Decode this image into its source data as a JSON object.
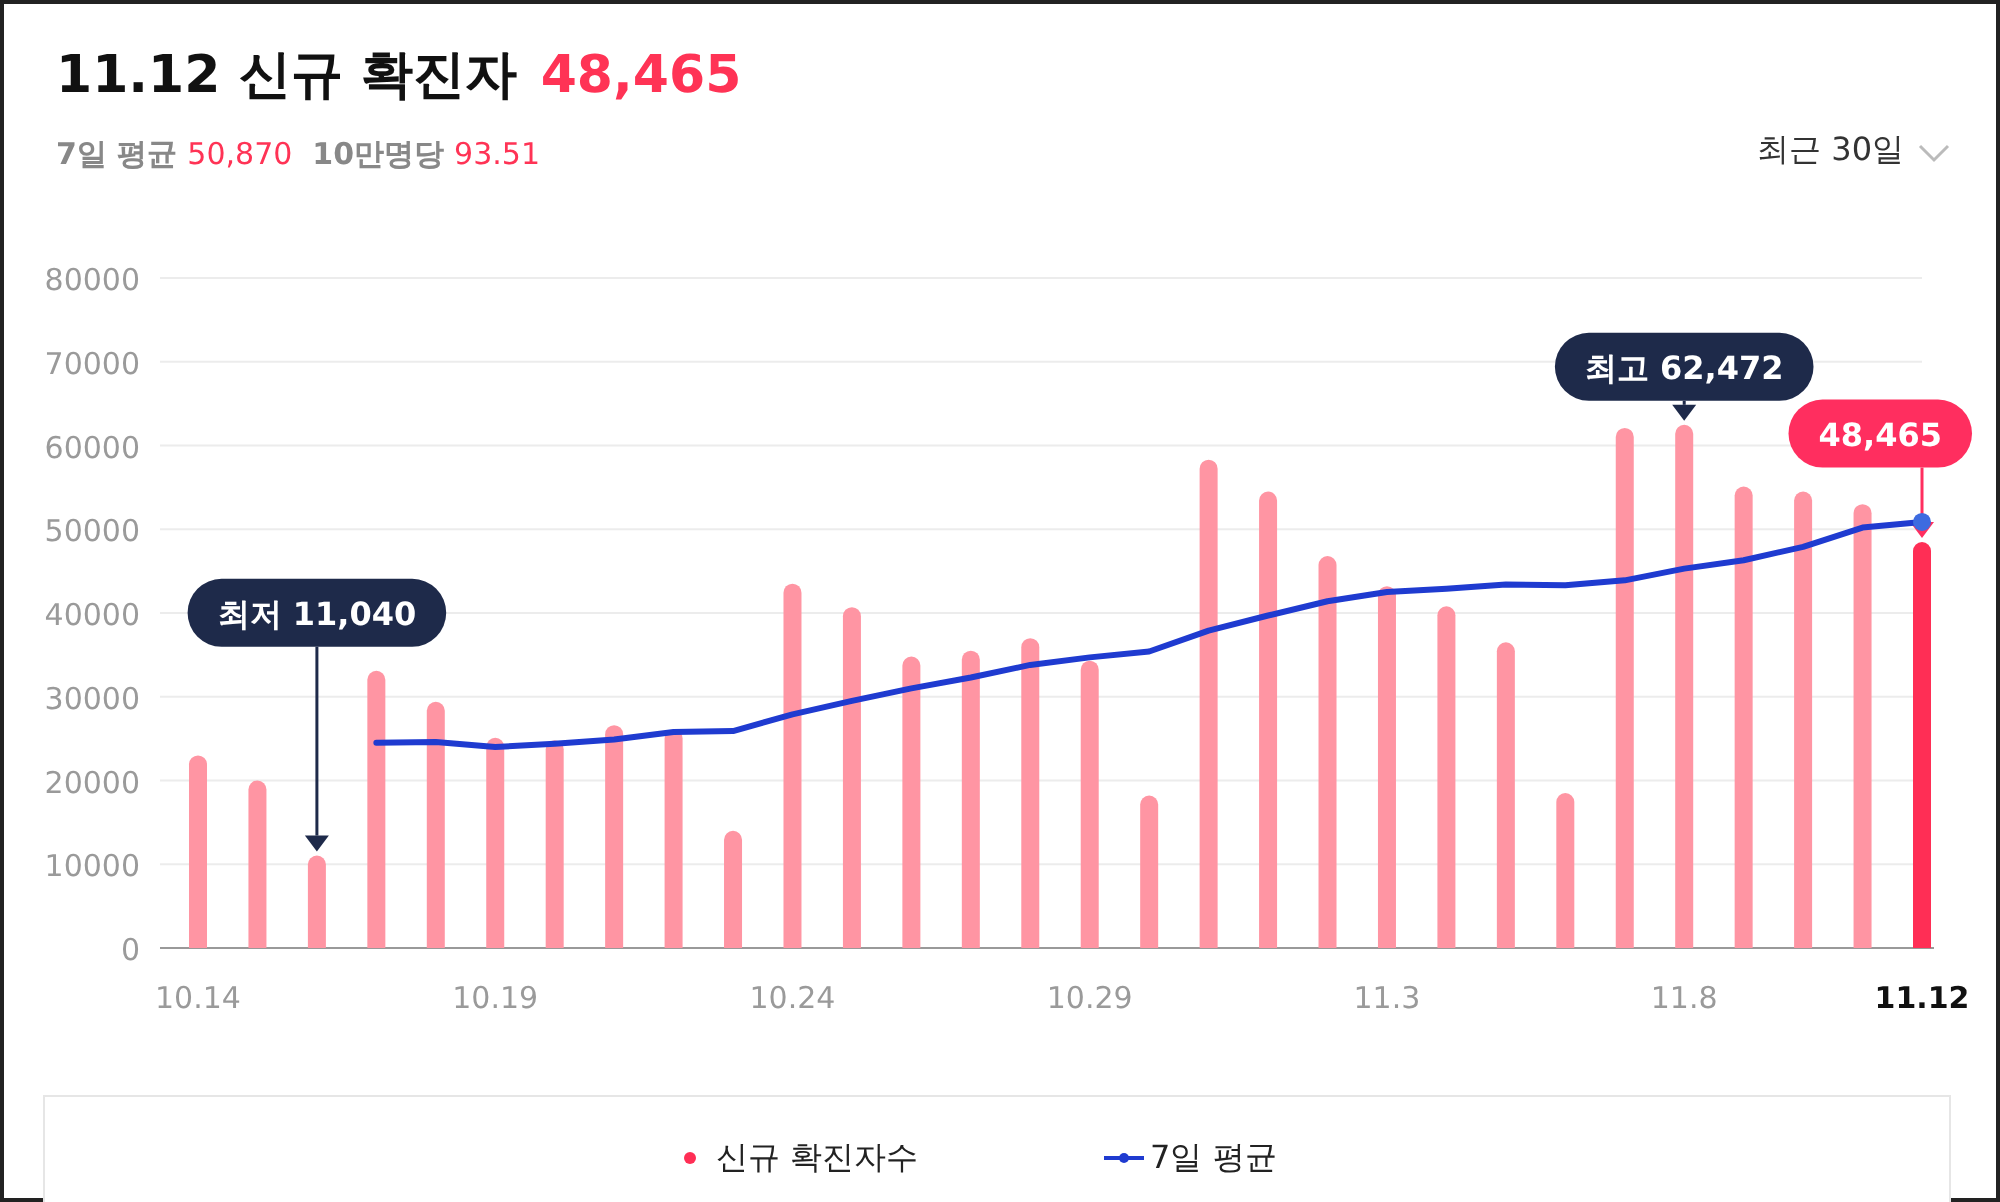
{
  "chart_data": {
    "type": "bar",
    "title": "11.12 신규 확진자",
    "annotations": [
      "48,465",
      "7일 평균",
      "50,870",
      "10만명당",
      "93.51",
      "최근 30일",
      "최저 11,040",
      {
        "text": "최고 62,472",
        "x": "11.8",
        "y": 62472
      },
      {
        "text": "48,465",
        "x": "11.12",
        "y": 48465
      }
    ],
    "categories": [
      "10.14",
      null,
      null,
      null,
      null,
      "10.19",
      null,
      null,
      null,
      null,
      "10.24",
      null,
      null,
      null,
      null,
      "10.29",
      null,
      null,
      null,
      null,
      "11.3",
      null,
      null,
      null,
      null,
      "11.8",
      null,
      null,
      null,
      "11.12"
    ],
    "series": [
      {
        "name": "신규 확진자수",
        "colors": [
          "#ff95a3",
          "#ff95a3",
          "#ff95a3",
          "#ff95a3",
          "#ff95a3",
          "#ff95a3",
          "#ff95a3",
          "#ff95a3",
          "#ff95a3",
          "#ff95a3",
          "#ff95a3",
          "#ff95a3",
          "#ff95a3",
          "#ff95a3",
          "#ff95a3",
          "#ff95a3",
          "#ff95a3",
          "#ff95a3",
          "#ff95a3",
          "#ff95a3",
          "#ff95a3",
          "#ff95a3",
          "#ff95a3",
          "#ff95a3",
          "#ff95a3",
          "#ff95a3",
          "#ff95a3",
          "#ff95a3",
          "#ff95a3",
          "#ff2e55"
        ],
        "values": [
          23000,
          20000,
          11040,
          33100,
          29400,
          25100,
          24800,
          26600,
          26100,
          14000,
          43500,
          40700,
          34800,
          35500,
          37000,
          34300,
          18200,
          58300,
          54500,
          46800,
          43200,
          40800,
          36500,
          18500,
          62100,
          62472,
          55100,
          54500,
          53000,
          48465
        ]
      },
      {
        "name": "7일 평균",
        "type": "line",
        "color": "#1f3bd0",
        "values": [
          null,
          null,
          null,
          24500,
          24600,
          24000,
          24400,
          24900,
          25800,
          25900,
          27900,
          29500,
          31000,
          32300,
          33800,
          34700,
          35400,
          37900,
          39700,
          41400,
          42500,
          42900,
          43400,
          43300,
          43900,
          45300,
          46300,
          47900,
          50200,
          50870
        ]
      }
    ],
    "ylim": [
      0,
      80000
    ],
    "yticks": [
      0,
      10000,
      20000,
      30000,
      40000,
      50000,
      60000,
      70000,
      80000
    ],
    "grid": "y",
    "legend": "bottom"
  }
}
